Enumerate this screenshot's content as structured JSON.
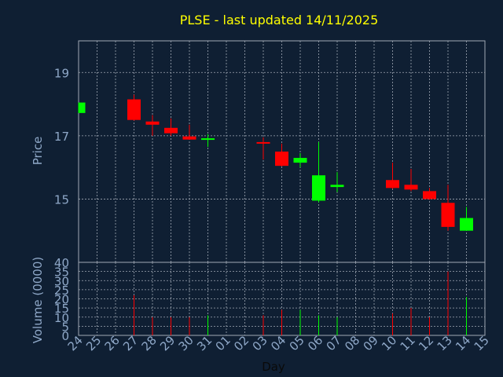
{
  "chart_data": {
    "type": "candlestick",
    "title": "PLSE - last updated 14/11/2025",
    "xlabel": "Day",
    "ylabel_price": "Price",
    "ylabel_volume": "Volume (0000)",
    "x_ticks": [
      "24",
      "25",
      "26",
      "27",
      "28",
      "29",
      "30",
      "31",
      "01",
      "02",
      "03",
      "04",
      "05",
      "06",
      "07",
      "08",
      "09",
      "10",
      "11",
      "12",
      "13",
      "14",
      "15"
    ],
    "price_ticks": [
      "19",
      "17",
      "15"
    ],
    "volume_ticks": [
      "40",
      "35",
      "30",
      "25",
      "20",
      "15",
      "10",
      "5",
      "0"
    ],
    "price_ylim": [
      13,
      20
    ],
    "volume_ylim": [
      0,
      40
    ],
    "colors": {
      "up": "#00ff00",
      "down": "#ff0000",
      "background": "#0f1f33",
      "title": "#ffff00",
      "axis_text": "#8fa8c8",
      "grid": "#a0a8b4"
    },
    "candles": [
      {
        "day": "24",
        "open": 17.72,
        "high": 18.05,
        "low": 17.72,
        "close": 18.05,
        "volume": 0
      },
      {
        "day": "27",
        "open": 18.15,
        "high": 18.3,
        "low": 17.48,
        "close": 17.5,
        "volume": 22
      },
      {
        "day": "28",
        "open": 17.45,
        "high": 17.65,
        "low": 17.0,
        "close": 17.35,
        "volume": 10
      },
      {
        "day": "29",
        "open": 17.25,
        "high": 17.55,
        "low": 17.0,
        "close": 17.08,
        "volume": 10
      },
      {
        "day": "30",
        "open": 16.98,
        "high": 17.35,
        "low": 16.88,
        "close": 16.88,
        "volume": 10
      },
      {
        "day": "31",
        "open": 16.88,
        "high": 17.05,
        "low": 16.65,
        "close": 16.92,
        "volume": 11
      },
      {
        "day": "03",
        "open": 16.8,
        "high": 16.95,
        "low": 16.25,
        "close": 16.78,
        "volume": 11
      },
      {
        "day": "04",
        "open": 16.5,
        "high": 16.75,
        "low": 16.03,
        "close": 16.05,
        "volume": 14
      },
      {
        "day": "05",
        "open": 16.15,
        "high": 16.45,
        "low": 16.0,
        "close": 16.3,
        "volume": 14
      },
      {
        "day": "06",
        "open": 14.95,
        "high": 16.8,
        "low": 14.9,
        "close": 15.75,
        "volume": 11
      },
      {
        "day": "07",
        "open": 15.38,
        "high": 15.85,
        "low": 15.22,
        "close": 15.45,
        "volume": 10
      },
      {
        "day": "10",
        "open": 15.6,
        "high": 16.15,
        "low": 15.32,
        "close": 15.35,
        "volume": 12
      },
      {
        "day": "11",
        "open": 15.45,
        "high": 15.95,
        "low": 15.25,
        "close": 15.3,
        "volume": 15
      },
      {
        "day": "12",
        "open": 15.25,
        "high": 15.35,
        "low": 14.98,
        "close": 15.0,
        "volume": 10
      },
      {
        "day": "13",
        "open": 14.88,
        "high": 15.45,
        "low": 14.0,
        "close": 14.12,
        "volume": 35
      },
      {
        "day": "14",
        "open": 14.0,
        "high": 14.75,
        "low": 14.0,
        "close": 14.4,
        "volume": 21
      }
    ]
  }
}
